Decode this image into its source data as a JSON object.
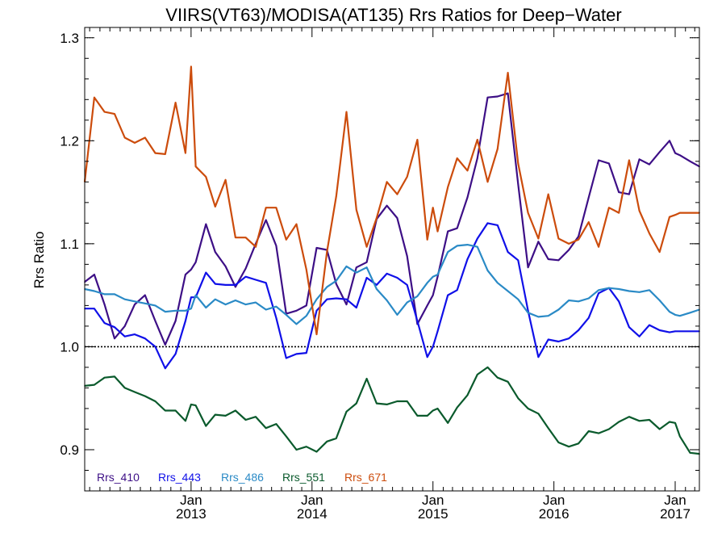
{
  "chart_data": {
    "type": "line",
    "title": "VIIRS(VT63)/MODISA(AT135)  Rrs Ratios for Deep−Water",
    "xlabel": "",
    "ylabel": "Rrs Ratio",
    "ylim": [
      0.86,
      1.31
    ],
    "xlim": [
      "2012-02-15",
      "2017-03-15"
    ],
    "yticks": [
      0.9,
      1.0,
      1.1,
      1.2,
      1.3
    ],
    "ytick_labels": [
      "0.9",
      "1.0",
      "1.1",
      "1.2",
      "1.3"
    ],
    "xticks": [
      {
        "date": "2013-01-01",
        "month": "Jan",
        "year": "2013"
      },
      {
        "date": "2014-01-01",
        "month": "Jan",
        "year": "2014"
      },
      {
        "date": "2015-01-01",
        "month": "Jan",
        "year": "2015"
      },
      {
        "date": "2016-01-01",
        "month": "Jan",
        "year": "2016"
      },
      {
        "date": "2017-01-01",
        "month": "Jan",
        "year": "2017"
      }
    ],
    "reference_line": 1.0,
    "legend_position": "bottom-left",
    "x": [
      "2012-02-15",
      "2012-03-15",
      "2012-04-15",
      "2012-05-15",
      "2012-06-15",
      "2012-07-15",
      "2012-08-15",
      "2012-09-15",
      "2012-10-15",
      "2012-11-15",
      "2012-12-15",
      "2013-01-01",
      "2013-01-15",
      "2013-02-15",
      "2013-03-15",
      "2013-04-15",
      "2013-05-15",
      "2013-06-15",
      "2013-07-15",
      "2013-08-15",
      "2013-09-15",
      "2013-10-15",
      "2013-11-15",
      "2013-12-15",
      "2014-01-15",
      "2014-02-15",
      "2014-03-15",
      "2014-04-15",
      "2014-05-15",
      "2014-06-15",
      "2014-07-15",
      "2014-08-15",
      "2014-09-15",
      "2014-10-15",
      "2014-11-15",
      "2014-12-15",
      "2015-01-01",
      "2015-01-15",
      "2015-02-15",
      "2015-03-15",
      "2015-04-15",
      "2015-05-15",
      "2015-06-15",
      "2015-07-15",
      "2015-08-15",
      "2015-09-15",
      "2015-10-15",
      "2015-11-15",
      "2015-12-15",
      "2016-01-15",
      "2016-02-15",
      "2016-03-15",
      "2016-04-15",
      "2016-05-15",
      "2016-06-15",
      "2016-07-15",
      "2016-08-15",
      "2016-09-15",
      "2016-10-15",
      "2016-11-15",
      "2016-12-15",
      "2017-01-01",
      "2017-01-15",
      "2017-02-15",
      "2017-03-15"
    ],
    "series": [
      {
        "name": "Rrs_410",
        "color": "#3d0f86",
        "values": [
          1.063,
          1.07,
          1.041,
          1.008,
          1.02,
          1.041,
          1.05,
          1.025,
          1.002,
          1.025,
          1.07,
          1.075,
          1.082,
          1.119,
          1.092,
          1.078,
          1.058,
          1.076,
          1.1,
          1.123,
          1.098,
          1.032,
          1.035,
          1.04,
          1.096,
          1.094,
          1.061,
          1.041,
          1.077,
          1.082,
          1.124,
          1.137,
          1.125,
          1.088,
          1.022,
          1.04,
          1.05,
          1.068,
          1.112,
          1.115,
          1.145,
          1.183,
          1.242,
          1.243,
          1.246,
          1.158,
          1.077,
          1.102,
          1.085,
          1.084,
          1.094,
          1.107,
          1.145,
          1.181,
          1.178,
          1.15,
          1.148,
          1.182,
          1.177,
          1.189,
          1.2,
          1.188,
          1.186,
          1.18,
          1.175
        ]
      },
      {
        "name": "Rrs_443",
        "color": "#1010e8",
        "values": [
          1.037,
          1.037,
          1.023,
          1.019,
          1.01,
          1.012,
          1.008,
          1.0,
          0.979,
          0.993,
          1.025,
          1.048,
          1.048,
          1.072,
          1.061,
          1.06,
          1.06,
          1.068,
          1.065,
          1.062,
          1.028,
          0.989,
          0.993,
          0.994,
          1.035,
          1.046,
          1.047,
          1.046,
          1.038,
          1.067,
          1.06,
          1.071,
          1.067,
          1.06,
          1.025,
          0.99,
          1.0,
          1.015,
          1.05,
          1.055,
          1.085,
          1.105,
          1.12,
          1.118,
          1.092,
          1.084,
          1.035,
          0.99,
          1.007,
          1.005,
          1.008,
          1.016,
          1.028,
          1.052,
          1.057,
          1.044,
          1.019,
          1.01,
          1.021,
          1.016,
          1.014,
          1.015,
          1.015,
          1.015,
          1.015
        ]
      },
      {
        "name": "Rrs_486",
        "color": "#2a8ac6",
        "values": [
          1.056,
          1.054,
          1.051,
          1.051,
          1.046,
          1.044,
          1.042,
          1.04,
          1.034,
          1.035,
          1.035,
          1.037,
          1.05,
          1.038,
          1.046,
          1.041,
          1.045,
          1.041,
          1.043,
          1.036,
          1.039,
          1.031,
          1.022,
          1.03,
          1.046,
          1.058,
          1.064,
          1.078,
          1.072,
          1.077,
          1.056,
          1.045,
          1.031,
          1.043,
          1.049,
          1.062,
          1.068,
          1.07,
          1.092,
          1.098,
          1.099,
          1.097,
          1.074,
          1.062,
          1.054,
          1.046,
          1.033,
          1.029,
          1.03,
          1.036,
          1.045,
          1.044,
          1.047,
          1.055,
          1.057,
          1.056,
          1.054,
          1.053,
          1.055,
          1.045,
          1.034,
          1.031,
          1.03,
          1.033,
          1.036
        ]
      },
      {
        "name": "Rrs_551",
        "color": "#0a5a2c",
        "values": [
          0.962,
          0.963,
          0.97,
          0.971,
          0.96,
          0.956,
          0.952,
          0.947,
          0.938,
          0.938,
          0.928,
          0.944,
          0.943,
          0.923,
          0.934,
          0.933,
          0.938,
          0.929,
          0.932,
          0.921,
          0.925,
          0.913,
          0.9,
          0.903,
          0.898,
          0.908,
          0.911,
          0.937,
          0.945,
          0.969,
          0.945,
          0.944,
          0.947,
          0.947,
          0.933,
          0.933,
          0.938,
          0.94,
          0.926,
          0.941,
          0.953,
          0.973,
          0.98,
          0.97,
          0.966,
          0.95,
          0.94,
          0.935,
          0.921,
          0.907,
          0.903,
          0.906,
          0.918,
          0.916,
          0.92,
          0.927,
          0.932,
          0.928,
          0.929,
          0.92,
          0.927,
          0.926,
          0.913,
          0.897,
          0.896
        ]
      },
      {
        "name": "Rrs_671",
        "color": "#cc4c0c",
        "values": [
          1.16,
          1.242,
          1.228,
          1.226,
          1.203,
          1.198,
          1.203,
          1.188,
          1.187,
          1.237,
          1.188,
          1.272,
          1.175,
          1.165,
          1.136,
          1.162,
          1.106,
          1.106,
          1.097,
          1.135,
          1.135,
          1.104,
          1.119,
          1.075,
          1.012,
          1.092,
          1.146,
          1.228,
          1.133,
          1.097,
          1.125,
          1.16,
          1.148,
          1.165,
          1.201,
          1.104,
          1.135,
          1.112,
          1.155,
          1.183,
          1.171,
          1.201,
          1.16,
          1.192,
          1.266,
          1.178,
          1.13,
          1.105,
          1.148,
          1.105,
          1.1,
          1.104,
          1.121,
          1.097,
          1.135,
          1.13,
          1.181,
          1.132,
          1.11,
          1.092,
          1.126,
          1.128,
          1.13,
          1.13,
          1.13
        ]
      }
    ]
  }
}
